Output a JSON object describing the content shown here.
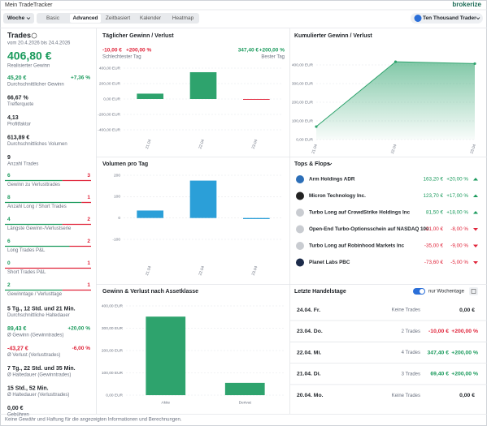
{
  "header": {
    "app_title": "Mein TradeTracker",
    "brand": "brokerize",
    "period": "Woche",
    "tabs": [
      "Basic",
      "Advanced",
      "Zeitbasiert",
      "Kalender",
      "Heatmap"
    ],
    "active_tab": "Advanced",
    "account": "Ten Thousand Trader"
  },
  "summary": {
    "title": "Trades",
    "range": "vom 20.4.2026 bis 24.4.2026",
    "realized": "406,80 €",
    "realized_label": "Realisierter Gewinn",
    "stats": [
      {
        "value": "45,20 €",
        "change": "+7,36 %",
        "label": "Durchschnittlicher Gewinn",
        "tone": "up"
      },
      {
        "value": "66,67 %",
        "label": "Trefferquote"
      },
      {
        "value": "4,13",
        "label": "Profitfaktor"
      },
      {
        "value": "613,89 €",
        "label": "Durchschnittliches Volumen"
      },
      {
        "value": "9",
        "label": "Anzahl Trades"
      },
      {
        "win": 6,
        "loss": 3,
        "label": "Gewinn zu Verlusttrades"
      },
      {
        "win": 8,
        "loss": 1,
        "label": "Anzahl Long / Short Trades"
      },
      {
        "win": 4,
        "loss": 2,
        "label": "Längste Gewinn-/Verlustserie"
      },
      {
        "win": 6,
        "loss": 2,
        "label": "Long Trades P&L"
      },
      {
        "win": 0,
        "loss": 1,
        "label": "Short Trades P&L"
      },
      {
        "win": 2,
        "loss": 1,
        "label": "Gewinntage / Verlusttage"
      },
      {
        "value": "5 Tg., 12 Std. und 21 Min.",
        "label": "Durchschnittliche Haltedauer"
      },
      {
        "value": "89,43 €",
        "change": "+20,00 %",
        "label": "Ø Gewinn (Gewinntrades)",
        "tone": "up"
      },
      {
        "value": "-43,27 €",
        "change": "-6,00 %",
        "label": "Ø Verlust (Verlusttrades)",
        "tone": "down"
      },
      {
        "value": "7 Tg., 22 Std. und 35 Min.",
        "label": "Ø Haltedauer (Gewinntrades)"
      },
      {
        "value": "15 Std., 52 Min.",
        "label": "Ø Haltedauer (Verlusttrades)"
      },
      {
        "value": "0,00 €",
        "label": "Gebühren"
      }
    ]
  },
  "daily_chart": {
    "type": "bar",
    "title": "Täglicher Gewinn / Verlust",
    "worst": {
      "value": "-10,00 €",
      "change": "+200,00 %",
      "label": "Schlechtester Tag"
    },
    "best": {
      "value": "347,40 €",
      "change": "+200,00 %",
      "label": "Bester Tag"
    },
    "categories": [
      "21.04",
      "22.04",
      "23.04"
    ],
    "values": [
      69.4,
      347.4,
      -10
    ],
    "color": "#2ea36d",
    "negative_color": "#e0243a",
    "ylim": [
      -400,
      400
    ],
    "yticks": [
      {
        "value": 400,
        "label": "400,00 EUR"
      },
      {
        "value": 200,
        "label": "200,00 EUR"
      },
      {
        "value": 0,
        "label": "0,00 EUR"
      },
      {
        "value": -200,
        "label": "-200,00 EUR"
      },
      {
        "value": -400,
        "label": "-400,00 EUR"
      }
    ]
  },
  "volume_chart": {
    "type": "bar",
    "title": "Volumen pro Tag",
    "categories": [
      "21.04",
      "22.04",
      "23.04"
    ],
    "values": [
      35,
      175,
      -5
    ],
    "color": "#2b9fd8",
    "ylim": [
      -100,
      200
    ],
    "yticks": [
      200,
      100,
      0,
      -100
    ]
  },
  "asset_chart": {
    "type": "bar",
    "title": "Gewinn & Verlust nach Assetklasse",
    "categories": [
      "Aktie",
      "Derivat"
    ],
    "values": [
      352,
      55
    ],
    "color": "#2ea36d",
    "ylim": [
      0,
      400
    ],
    "yticks": [
      {
        "value": 400,
        "label": "400,00 EUR"
      },
      {
        "value": 300,
        "label": "300,00 EUR"
      },
      {
        "value": 200,
        "label": "200,00 EUR"
      },
      {
        "value": 100,
        "label": "100,00 EUR"
      },
      {
        "value": 0,
        "label": "0,00 EUR"
      }
    ]
  },
  "cumulative_chart": {
    "type": "area",
    "title": "Kumulierter Gewinn / Verlust",
    "categories": [
      "21.04",
      "22.04",
      "23.04"
    ],
    "values": [
      69.4,
      416.8,
      406.8
    ],
    "color": "#2ea36d",
    "ylim": [
      0,
      400
    ],
    "yticks": [
      {
        "value": 400,
        "label": "400,00 EUR"
      },
      {
        "value": 300,
        "label": "300,00 EUR"
      },
      {
        "value": 200,
        "label": "200,00 EUR"
      },
      {
        "value": 100,
        "label": "100,00 EUR"
      },
      {
        "value": 0,
        "label": "0,00 EUR"
      }
    ]
  },
  "tops_flops": {
    "title": "Tops & Flops",
    "items": [
      {
        "name": "Arm Holdings ADR",
        "value": "163,20 €",
        "change": "+20,00 %",
        "tone": "up"
      },
      {
        "name": "Micron Technology Inc.",
        "value": "123,70 €",
        "change": "+17,00 %",
        "tone": "up"
      },
      {
        "name": "Turbo Long auf CrowdStrike Holdings Inc",
        "value": "81,50 €",
        "change": "+18,00 %",
        "tone": "up"
      },
      {
        "name": "Open-End Turbo-Optionsschein auf NASDAQ 100",
        "value": "-21,00 €",
        "change": "-8,00 %",
        "tone": "down"
      },
      {
        "name": "Turbo Long auf Robinhood Markets Inc",
        "value": "-35,00 €",
        "change": "-9,00 %",
        "tone": "down"
      },
      {
        "name": "Planet Labs PBC",
        "value": "-73,60 €",
        "change": "-5,00 %",
        "tone": "down"
      }
    ]
  },
  "recent_days": {
    "title": "Letzte Handelstage",
    "toggle_label": "nur Wochentage",
    "toggle_on": true,
    "rows": [
      {
        "date": "24.04. Fr.",
        "trades": "Keine Trades",
        "value": "0,00 €"
      },
      {
        "date": "23.04. Do.",
        "trades": "2 Trades",
        "value": "-10,00 €",
        "change": "+200,00 %",
        "tone": "down"
      },
      {
        "date": "22.04. Mi.",
        "trades": "4 Trades",
        "value": "347,40 €",
        "change": "+200,00 %",
        "tone": "up"
      },
      {
        "date": "21.04. Di.",
        "trades": "3 Trades",
        "value": "69,40 €",
        "change": "+200,00 %",
        "tone": "up"
      },
      {
        "date": "20.04. Mo.",
        "trades": "Keine Trades",
        "value": "0,00 €"
      }
    ]
  },
  "footer": "Keine Gewähr und Haftung für die angezeigten Informationen und Berechnungen."
}
